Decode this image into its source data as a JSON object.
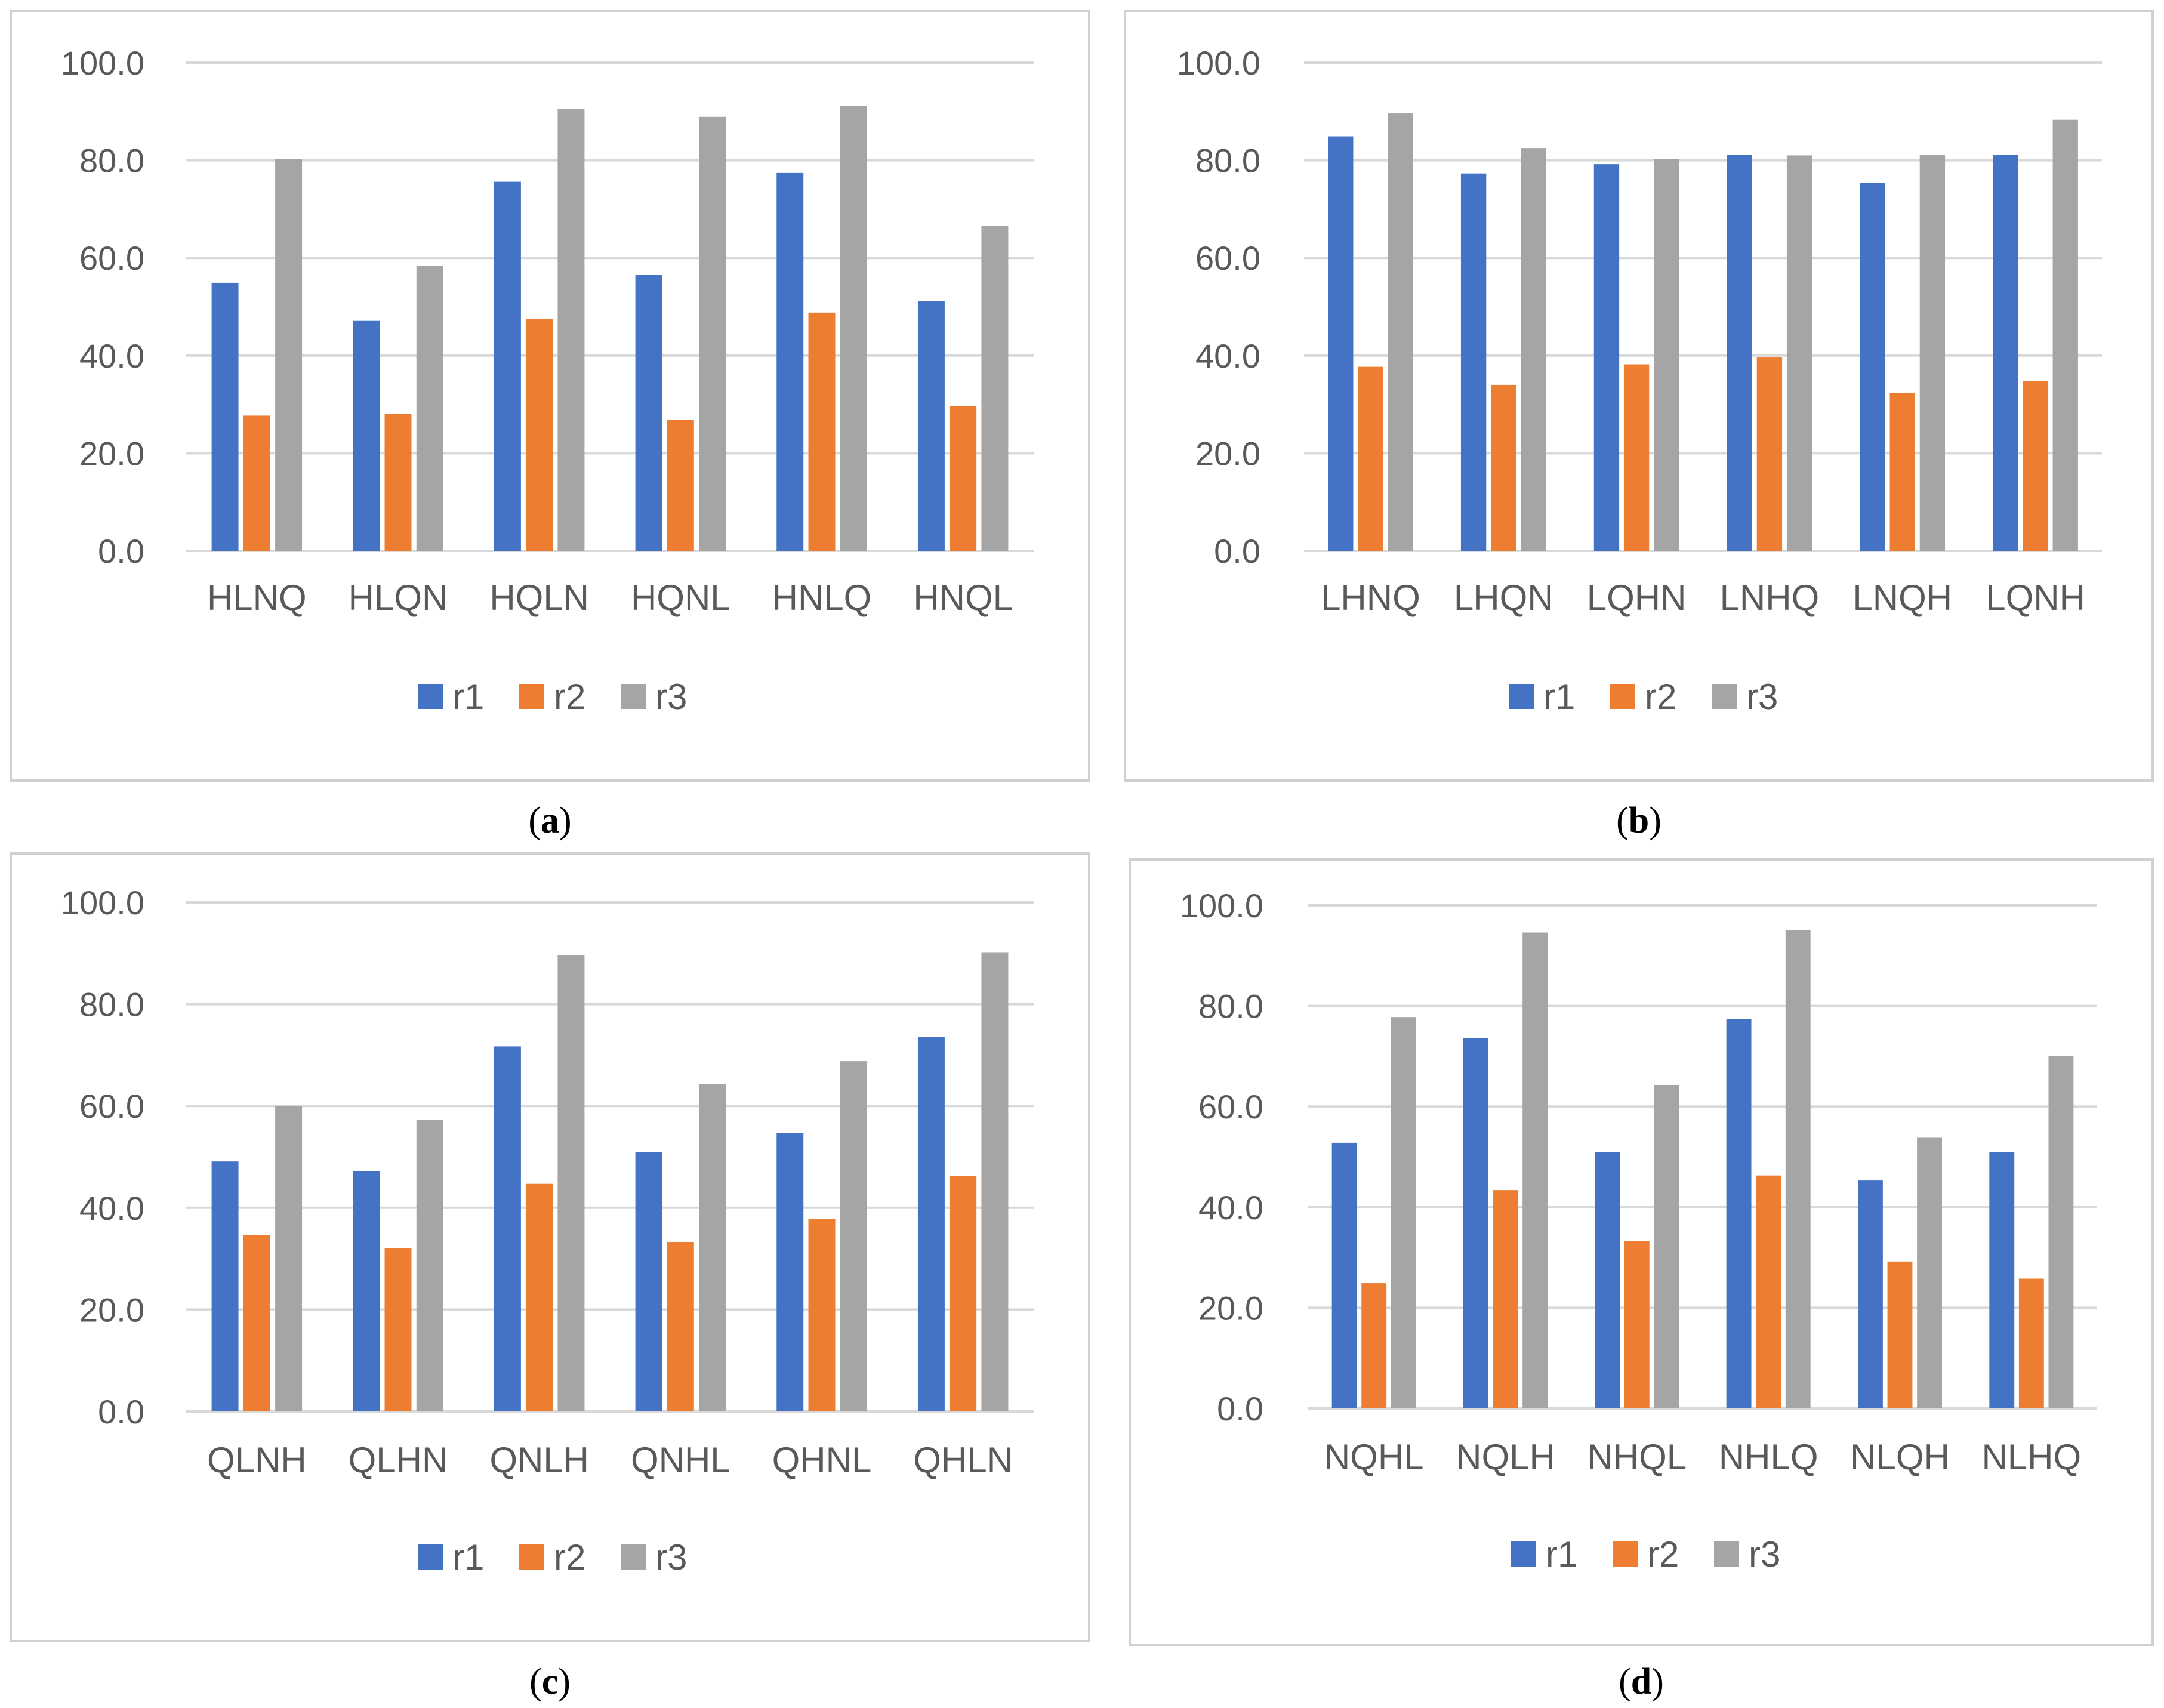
{
  "colors": {
    "r1": "#4472C4",
    "r2": "#ED7D31",
    "r3": "#A5A5A5"
  },
  "chart_data": [
    {
      "panel": "a",
      "caption": [
        "(",
        "a",
        ")"
      ],
      "type": "bar",
      "ylim": [
        0,
        100
      ],
      "yticks": [
        "0.0",
        "20.0",
        "40.0",
        "60.0",
        "80.0",
        "100.0"
      ],
      "categories": [
        "HLNQ",
        "HLQN",
        "HQLN",
        "HQNL",
        "HNLQ",
        "HNQL"
      ],
      "legend_position": "bottom",
      "grid": true,
      "series": [
        {
          "name": "r1",
          "values": [
            54.9,
            47.1,
            75.6,
            56.6,
            77.4,
            51.1
          ]
        },
        {
          "name": "r2",
          "values": [
            27.7,
            28.0,
            47.5,
            26.8,
            48.8,
            29.6
          ]
        },
        {
          "name": "r3",
          "values": [
            80.2,
            58.4,
            90.5,
            88.9,
            91.1,
            66.6
          ]
        }
      ]
    },
    {
      "panel": "b",
      "caption": [
        "(",
        "b",
        ")"
      ],
      "type": "bar",
      "ylim": [
        0,
        100
      ],
      "yticks": [
        "0.0",
        "20.0",
        "40.0",
        "60.0",
        "80.0",
        "100.0"
      ],
      "categories": [
        "LHNQ",
        "LHQN",
        "LQHN",
        "LNHQ",
        "LNQH",
        "LQNH"
      ],
      "legend_position": "bottom",
      "grid": true,
      "series": [
        {
          "name": "r1",
          "values": [
            84.9,
            77.3,
            79.2,
            81.1,
            75.4,
            81.1
          ]
        },
        {
          "name": "r2",
          "values": [
            37.7,
            34.0,
            38.2,
            39.6,
            32.4,
            34.8
          ]
        },
        {
          "name": "r3",
          "values": [
            89.6,
            82.5,
            80.2,
            81.0,
            81.1,
            88.3
          ]
        }
      ]
    },
    {
      "panel": "c",
      "caption": [
        "(",
        "c",
        ")"
      ],
      "type": "bar",
      "ylim": [
        0,
        100
      ],
      "yticks": [
        "0.0",
        "20.0",
        "40.0",
        "60.0",
        "80.0",
        "100.0"
      ],
      "categories": [
        "QLNH",
        "QLHN",
        "QNLH",
        "QNHL",
        "QHNL",
        "QHLN"
      ],
      "legend_position": "bottom",
      "grid": true,
      "series": [
        {
          "name": "r1",
          "values": [
            49.1,
            47.2,
            71.7,
            50.9,
            54.7,
            73.6
          ]
        },
        {
          "name": "r2",
          "values": [
            34.6,
            32.0,
            44.7,
            33.3,
            37.8,
            46.2
          ]
        },
        {
          "name": "r3",
          "values": [
            60.0,
            57.3,
            89.6,
            64.3,
            68.8,
            90.1
          ]
        }
      ]
    },
    {
      "panel": "d",
      "caption": [
        "(",
        "d",
        ")"
      ],
      "type": "bar",
      "ylim": [
        0,
        100
      ],
      "yticks": [
        "0.0",
        "20.0",
        "40.0",
        "60.0",
        "80.0",
        "100.0"
      ],
      "categories": [
        "NQHL",
        "NQLH",
        "NHQL",
        "NHLQ",
        "NLQH",
        "NLHQ"
      ],
      "legend_position": "bottom",
      "grid": true,
      "series": [
        {
          "name": "r1",
          "values": [
            52.8,
            73.6,
            50.9,
            77.4,
            45.3,
            50.9
          ]
        },
        {
          "name": "r2",
          "values": [
            24.9,
            43.4,
            33.3,
            46.3,
            29.2,
            25.8
          ]
        },
        {
          "name": "r3",
          "values": [
            77.8,
            94.6,
            64.3,
            95.1,
            53.8,
            70.1
          ]
        }
      ]
    }
  ]
}
